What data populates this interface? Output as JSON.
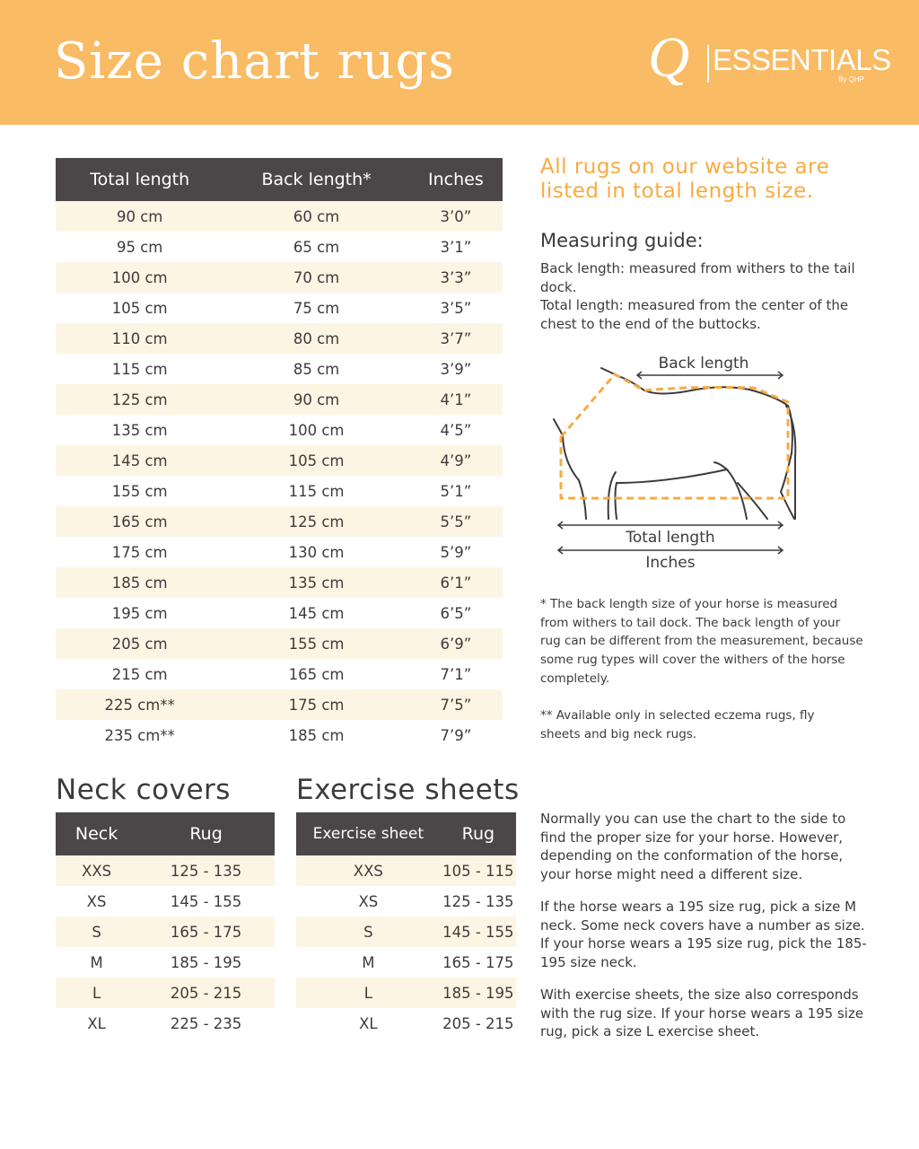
{
  "header": {
    "title": "Size chart rugs",
    "logo_text": "QESSENTIALS By QHP",
    "logo": {
      "q": "Q",
      "name": "ESSENTIALS",
      "by": "By QHP"
    }
  },
  "colors": {
    "header_bg": "#f9bb63",
    "accent": "#f7ab42",
    "table_header": "#4b4647",
    "row_alt": "#fdf5e3"
  },
  "rug_table": {
    "columns": [
      "Total length",
      "Back length*",
      "Inches"
    ],
    "rows": [
      [
        "90 cm",
        "60 cm",
        "3’0”"
      ],
      [
        "95 cm",
        "65 cm",
        "3’1”"
      ],
      [
        "100 cm",
        "70 cm",
        "3’3”"
      ],
      [
        "105 cm",
        "75 cm",
        "3’5”"
      ],
      [
        "110 cm",
        "80 cm",
        "3’7”"
      ],
      [
        "115 cm",
        "85 cm",
        "3’9”"
      ],
      [
        "125 cm",
        "90 cm",
        "4’1”"
      ],
      [
        "135 cm",
        "100 cm",
        "4’5”"
      ],
      [
        "145 cm",
        "105 cm",
        "4’9”"
      ],
      [
        "155 cm",
        "115 cm",
        "5’1”"
      ],
      [
        "165 cm",
        "125 cm",
        "5’5”"
      ],
      [
        "175 cm",
        "130 cm",
        "5’9”"
      ],
      [
        "185 cm",
        "135 cm",
        "6’1”"
      ],
      [
        "195 cm",
        "145 cm",
        "6’5”"
      ],
      [
        "205 cm",
        "155 cm",
        "6’9”"
      ],
      [
        "215 cm",
        "165 cm",
        "7’1”"
      ],
      [
        "225 cm**",
        "175 cm",
        "7’5”"
      ],
      [
        "235 cm**",
        "185 cm",
        "7’9”"
      ]
    ]
  },
  "neck": {
    "title": "Neck covers",
    "columns": [
      "Neck",
      "Rug"
    ],
    "rows": [
      [
        "XXS",
        "125 - 135"
      ],
      [
        "XS",
        "145 - 155"
      ],
      [
        "S",
        "165 - 175"
      ],
      [
        "M",
        "185 - 195"
      ],
      [
        "L",
        "205 - 215"
      ],
      [
        "XL",
        "225 - 235"
      ]
    ]
  },
  "exercise": {
    "title": "Exercise sheets",
    "columns": [
      "Exercise sheet",
      "Rug"
    ],
    "rows": [
      [
        "XXS",
        "105 - 115"
      ],
      [
        "XS",
        "125 - 135"
      ],
      [
        "S",
        "145 - 155"
      ],
      [
        "M",
        "165 - 175"
      ],
      [
        "L",
        "185 - 195"
      ],
      [
        "XL",
        "205 - 215"
      ]
    ]
  },
  "side": {
    "headline": "All rugs on our website are listed in total length size.",
    "guide_title": "Measuring guide:",
    "guide_text_1": "Back length: measured from withers to the tail dock.",
    "guide_text_2": "Total length: measured from the center of the chest to the end of the buttocks.",
    "diagram": {
      "back": "Back length",
      "total": "Total length",
      "inches": "Inches"
    },
    "note_1": "* The back length size of your horse is measured from withers to tail dock. The back length of your rug can be different from the measurement, because some rug types will cover the withers of the horse completely.",
    "note_2": "** Available only in selected eczema rugs, fly sheets and big neck rugs.",
    "para_1": "Normally you can use the chart to the side to find the proper size for your horse.  However, depending on the conformation of the horse, your horse might need a different size.",
    "para_2": "If the horse wears a 195 size rug, pick a size M neck. Some neck covers have a number as size. If your horse wears a 195 size rug, pick the 185-195 size neck.",
    "para_3": "With exercise sheets, the size also corresponds with the rug size. If your horse wears a 195 size rug, pick a size L exercise sheet."
  }
}
